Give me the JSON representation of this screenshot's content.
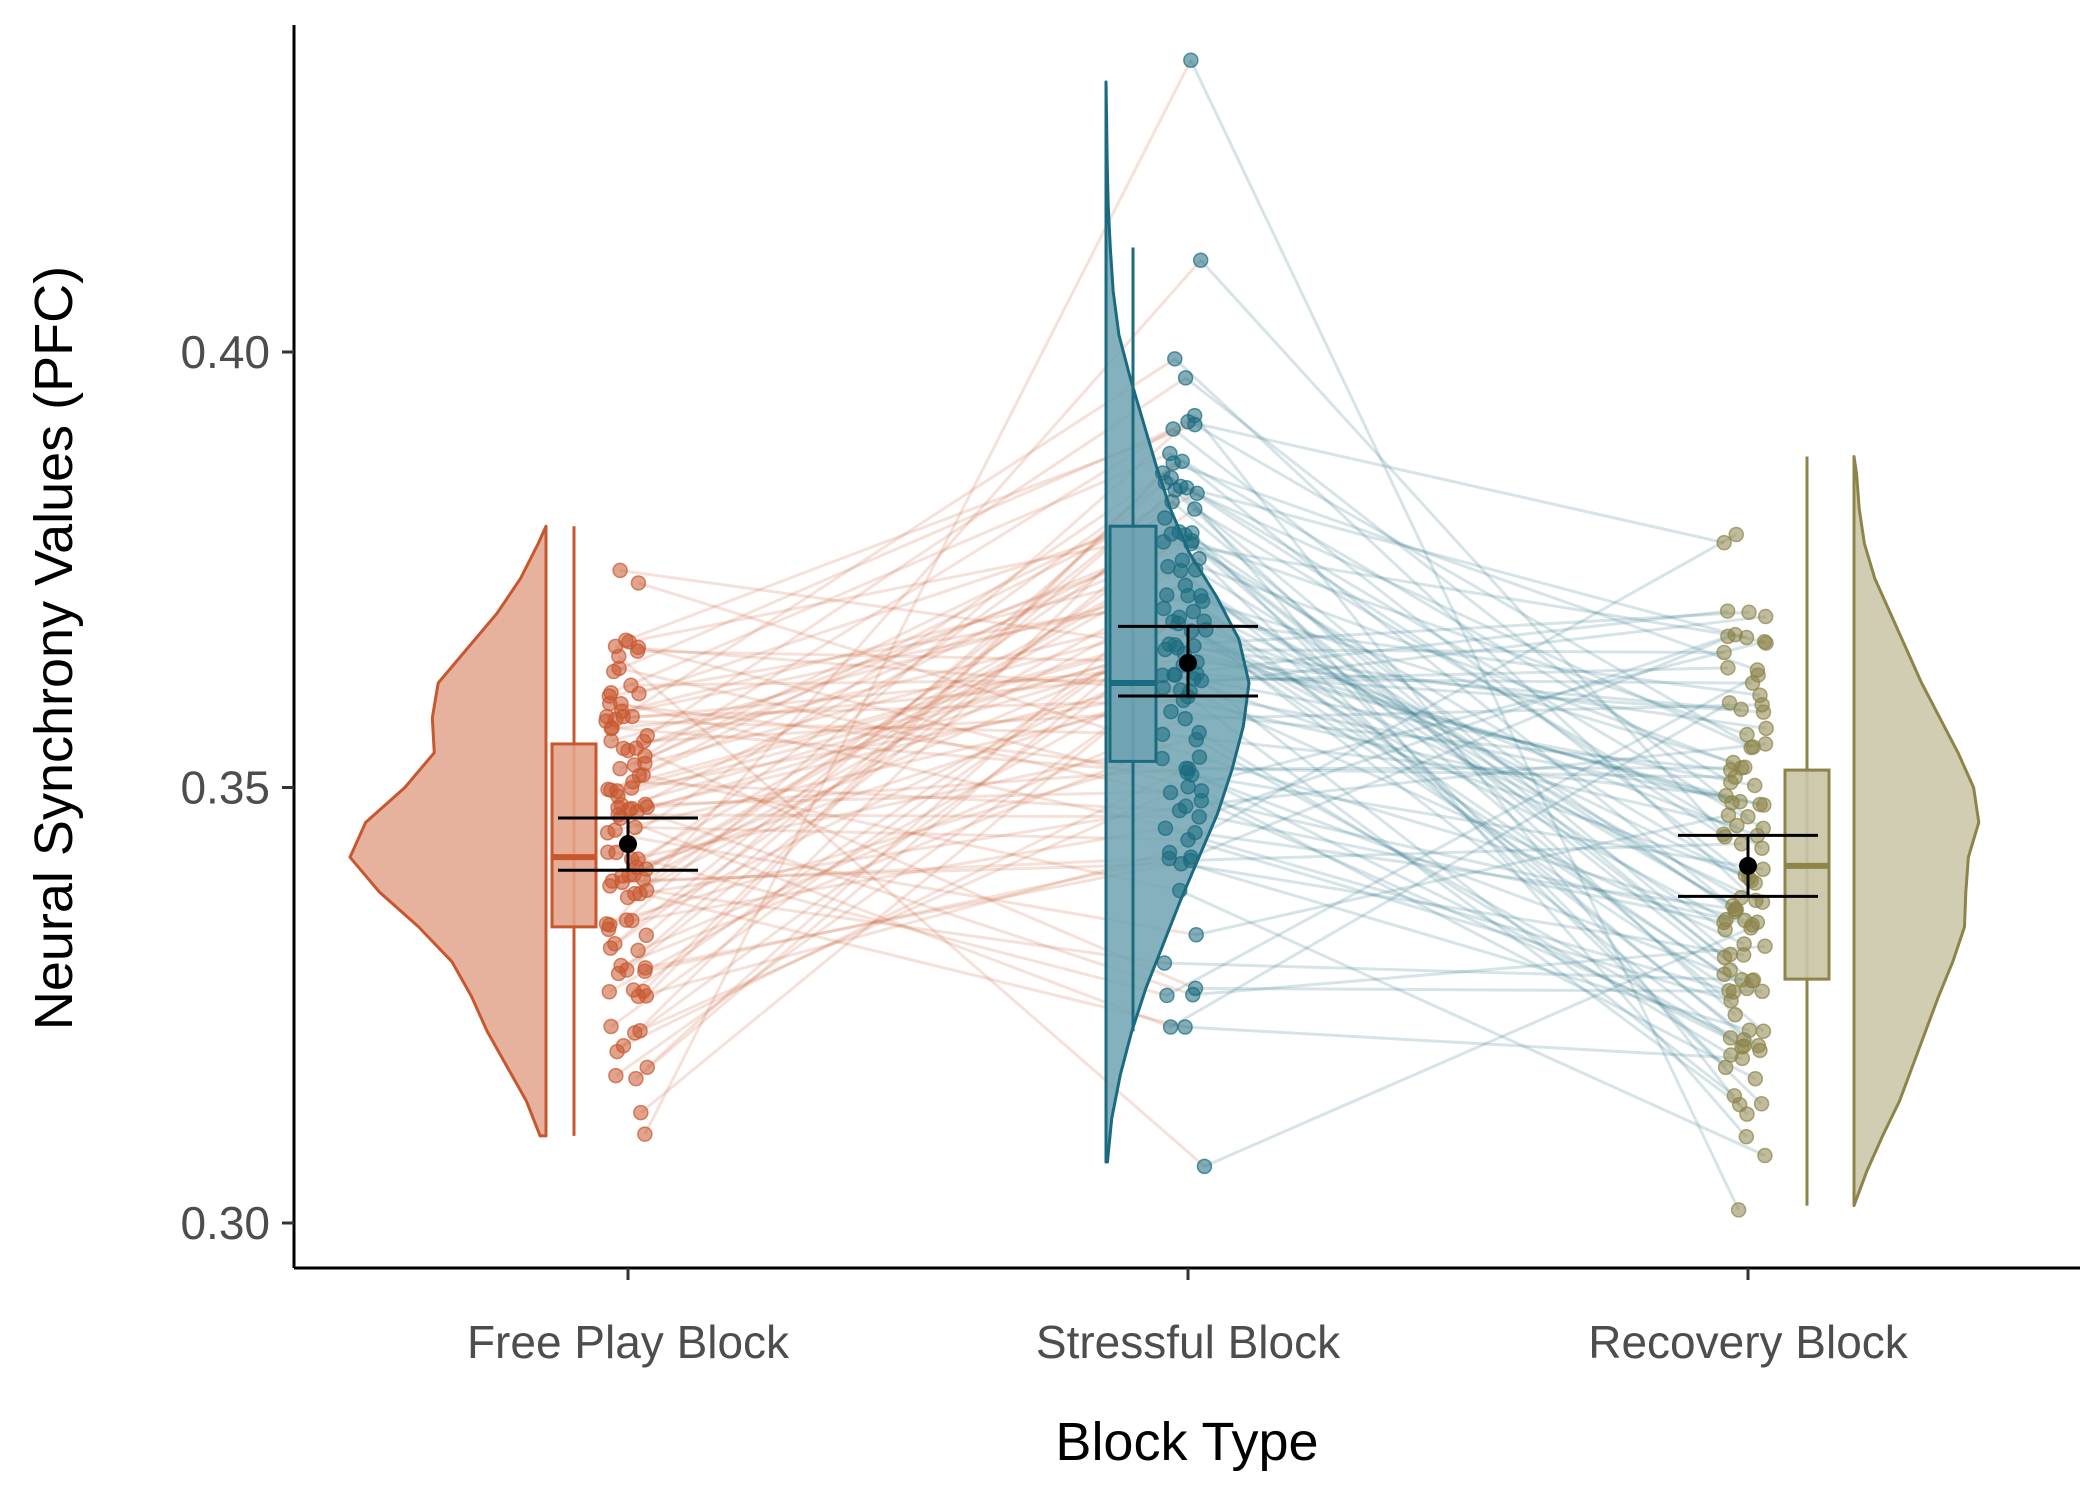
{
  "chart_data": {
    "type": "raincloud",
    "xlabel": "Block Type",
    "ylabel": "Neural Synchrony Values (PFC)",
    "ylim": [
      0.295,
      0.438
    ],
    "yticks": [
      {
        "value": 0.3,
        "label": "0.30"
      },
      {
        "value": 0.35,
        "label": "0.35"
      },
      {
        "value": 0.4,
        "label": "0.40"
      }
    ],
    "grid": false,
    "legend": "none",
    "n_subjects": 100,
    "categories": [
      "Free Play Block",
      "Stressful Block",
      "Recovery Block"
    ],
    "series": [
      {
        "name": "Free Play Block",
        "color": "#c8572f",
        "fill": "#e3a48c",
        "cloud_side": "left",
        "min": 0.31,
        "q1": 0.334,
        "median": 0.342,
        "q3": 0.355,
        "max": 0.38,
        "mean": 0.3435,
        "ci": [
          0.3405,
          0.3465
        ],
        "density": [
          [
            0.31,
            0.03
          ],
          [
            0.314,
            0.1
          ],
          [
            0.318,
            0.2
          ],
          [
            0.322,
            0.3
          ],
          [
            0.326,
            0.38
          ],
          [
            0.33,
            0.48
          ],
          [
            0.334,
            0.65
          ],
          [
            0.338,
            0.85
          ],
          [
            0.342,
            1.0
          ],
          [
            0.346,
            0.92
          ],
          [
            0.35,
            0.72
          ],
          [
            0.354,
            0.57
          ],
          [
            0.358,
            0.58
          ],
          [
            0.362,
            0.55
          ],
          [
            0.366,
            0.4
          ],
          [
            0.37,
            0.25
          ],
          [
            0.374,
            0.13
          ],
          [
            0.378,
            0.04
          ],
          [
            0.38,
            0.0
          ]
        ]
      },
      {
        "name": "Stressful Block",
        "color": "#1b6b80",
        "fill": "#6fa3b1",
        "cloud_side": "right",
        "min": 0.322,
        "q1": 0.353,
        "median": 0.362,
        "q3": 0.38,
        "max": 0.412,
        "mean": 0.3643,
        "ci": [
          0.3605,
          0.3685
        ],
        "density": [
          [
            0.307,
            0.01
          ],
          [
            0.312,
            0.04
          ],
          [
            0.317,
            0.1
          ],
          [
            0.322,
            0.18
          ],
          [
            0.327,
            0.28
          ],
          [
            0.332,
            0.4
          ],
          [
            0.337,
            0.52
          ],
          [
            0.342,
            0.65
          ],
          [
            0.347,
            0.78
          ],
          [
            0.352,
            0.88
          ],
          [
            0.357,
            0.96
          ],
          [
            0.362,
            1.0
          ],
          [
            0.367,
            0.93
          ],
          [
            0.372,
            0.77
          ],
          [
            0.377,
            0.58
          ],
          [
            0.382,
            0.45
          ],
          [
            0.387,
            0.35
          ],
          [
            0.392,
            0.26
          ],
          [
            0.397,
            0.17
          ],
          [
            0.402,
            0.09
          ],
          [
            0.407,
            0.05
          ],
          [
            0.412,
            0.03
          ],
          [
            0.417,
            0.015
          ],
          [
            0.422,
            0.008
          ],
          [
            0.427,
            0.004
          ],
          [
            0.431,
            0.0
          ]
        ]
      },
      {
        "name": "Recovery Block",
        "color": "#8c8448",
        "fill": "#c9c4a4",
        "cloud_side": "right",
        "min": 0.302,
        "q1": 0.328,
        "median": 0.341,
        "q3": 0.352,
        "max": 0.388,
        "mean": 0.341,
        "ci": [
          0.3375,
          0.3445
        ],
        "density": [
          [
            0.302,
            0.0
          ],
          [
            0.306,
            0.1
          ],
          [
            0.31,
            0.22
          ],
          [
            0.314,
            0.35
          ],
          [
            0.318,
            0.45
          ],
          [
            0.322,
            0.55
          ],
          [
            0.326,
            0.65
          ],
          [
            0.33,
            0.76
          ],
          [
            0.334,
            0.85
          ],
          [
            0.338,
            0.86
          ],
          [
            0.342,
            0.88
          ],
          [
            0.346,
            0.96
          ],
          [
            0.35,
            0.92
          ],
          [
            0.354,
            0.8
          ],
          [
            0.358,
            0.66
          ],
          [
            0.362,
            0.52
          ],
          [
            0.366,
            0.4
          ],
          [
            0.37,
            0.28
          ],
          [
            0.374,
            0.16
          ],
          [
            0.378,
            0.08
          ],
          [
            0.382,
            0.04
          ],
          [
            0.386,
            0.02
          ],
          [
            0.388,
            0.0
          ]
        ]
      }
    ]
  }
}
